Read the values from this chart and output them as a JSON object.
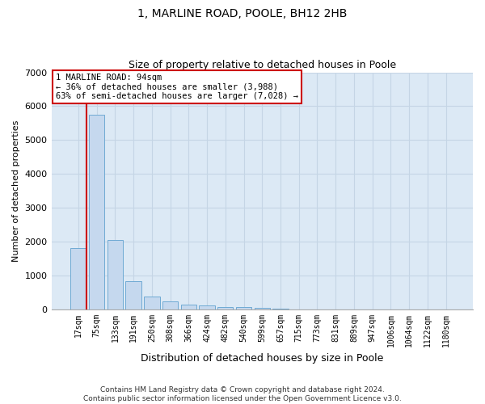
{
  "title": "1, MARLINE ROAD, POOLE, BH12 2HB",
  "subtitle": "Size of property relative to detached houses in Poole",
  "xlabel": "Distribution of detached houses by size in Poole",
  "ylabel": "Number of detached properties",
  "categories": [
    "17sqm",
    "75sqm",
    "133sqm",
    "191sqm",
    "250sqm",
    "308sqm",
    "366sqm",
    "424sqm",
    "482sqm",
    "540sqm",
    "599sqm",
    "657sqm",
    "715sqm",
    "773sqm",
    "831sqm",
    "889sqm",
    "947sqm",
    "1006sqm",
    "1064sqm",
    "1122sqm",
    "1180sqm"
  ],
  "values": [
    1800,
    5750,
    2050,
    820,
    380,
    230,
    130,
    100,
    75,
    55,
    30,
    5,
    0,
    0,
    0,
    0,
    0,
    0,
    0,
    0,
    0
  ],
  "bar_color": "#c5d8ee",
  "bar_edge_color": "#6faad4",
  "annotation_title": "1 MARLINE ROAD: 94sqm",
  "annotation_line1": "← 36% of detached houses are smaller (3,988)",
  "annotation_line2": "63% of semi-detached houses are larger (7,028) →",
  "annotation_box_color": "#ffffff",
  "annotation_box_edge": "#cc0000",
  "vline_color": "#cc0000",
  "vline_bar_index": 0,
  "ylim": [
    0,
    7000
  ],
  "yticks": [
    0,
    1000,
    2000,
    3000,
    4000,
    5000,
    6000,
    7000
  ],
  "grid_color": "#c5d5e5",
  "background_color": "#dce9f5",
  "title_fontsize": 10,
  "subtitle_fontsize": 9,
  "ylabel_fontsize": 8,
  "xlabel_fontsize": 9,
  "tick_fontsize": 7,
  "ytick_fontsize": 8,
  "footer_line1": "Contains HM Land Registry data © Crown copyright and database right 2024.",
  "footer_line2": "Contains public sector information licensed under the Open Government Licence v3.0."
}
